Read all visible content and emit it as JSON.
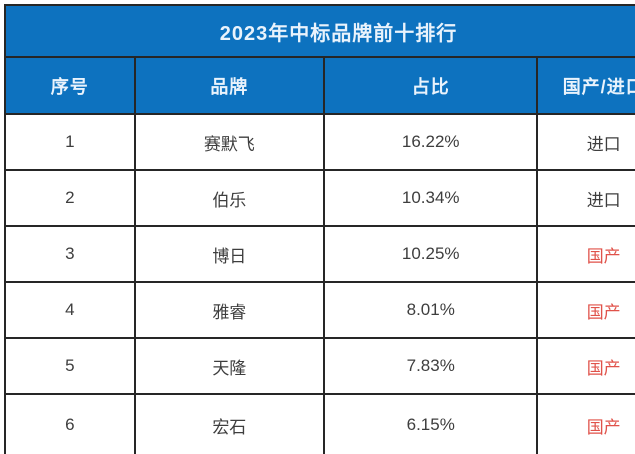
{
  "chart_data": {
    "type": "table",
    "title": "2023年中标品牌前十排行",
    "columns": [
      "序号",
      "品牌",
      "占比",
      "国产/进口"
    ],
    "rows": [
      {
        "rank": "1",
        "brand": "赛默飞",
        "share": "16.22%",
        "origin": "进口",
        "origin_type": "imported"
      },
      {
        "rank": "2",
        "brand": "伯乐",
        "share": "10.34%",
        "origin": "进口",
        "origin_type": "imported"
      },
      {
        "rank": "3",
        "brand": "博日",
        "share": "10.25%",
        "origin": "国产",
        "origin_type": "domestic"
      },
      {
        "rank": "4",
        "brand": "雅睿",
        "share": "8.01%",
        "origin": "国产",
        "origin_type": "domestic"
      },
      {
        "rank": "5",
        "brand": "天隆",
        "share": "7.83%",
        "origin": "国产",
        "origin_type": "domestic"
      },
      {
        "rank": "6",
        "brand": "宏石",
        "share": "6.15%",
        "origin": "国产",
        "origin_type": "domestic"
      }
    ],
    "layout": {
      "cropped_right": true,
      "cropped_bottom": true
    }
  },
  "colors": {
    "header_bg": "#0d72bf",
    "border": "#262626",
    "text": "#3e3e3e",
    "domestic_red": "#e0524a",
    "header_text": "#e9f3fc"
  }
}
